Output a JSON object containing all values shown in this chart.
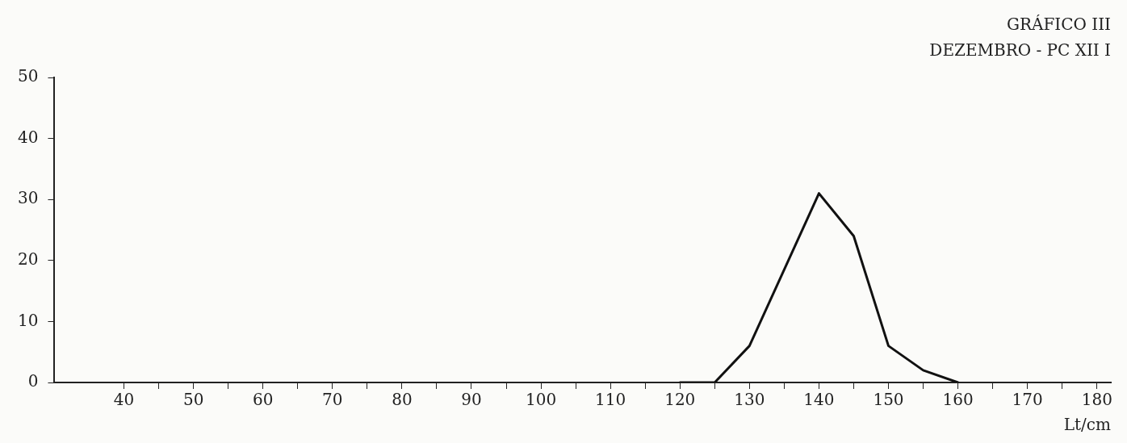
{
  "chart_data": {
    "type": "line",
    "title": "GRÁFICO III",
    "subtitle": "DEZEMBRO - PC XII I",
    "xlabel": "Lt/cm",
    "x": [
      120,
      125,
      130,
      140,
      145,
      150,
      155,
      160
    ],
    "series": [
      {
        "color": "#111111",
        "values": [
          0,
          0,
          6,
          31,
          24,
          6,
          2,
          0
        ]
      }
    ],
    "xlim": [
      30,
      182
    ],
    "ylim": [
      0,
      50
    ],
    "xticks": [
      40,
      {
        "value": 45,
        "label": null
      },
      50,
      {
        "value": 55,
        "label": null
      },
      60,
      {
        "value": 65,
        "label": null
      },
      70,
      {
        "value": 75,
        "label": null
      },
      80,
      {
        "value": 85,
        "label": null
      },
      90,
      {
        "value": 95,
        "label": null
      },
      100,
      {
        "value": 105,
        "label": null
      },
      110,
      {
        "value": 115,
        "label": null
      },
      120,
      {
        "value": 125,
        "label": null
      },
      130,
      {
        "value": 135,
        "label": null
      },
      140,
      {
        "value": 145,
        "label": null
      },
      150,
      {
        "value": 155,
        "label": null
      },
      160,
      {
        "value": 165,
        "label": null
      },
      170,
      {
        "value": 175,
        "label": null
      },
      180
    ],
    "yticks": [
      0,
      10,
      20,
      30,
      40,
      50
    ],
    "grid": false,
    "legend": false,
    "marker": "none",
    "line_style": "solid"
  }
}
